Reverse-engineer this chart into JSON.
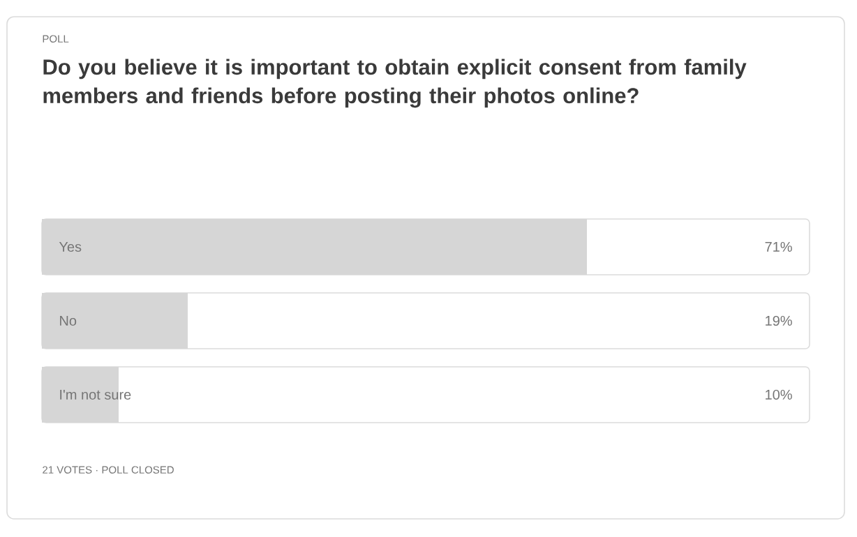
{
  "chart_data": {
    "type": "bar",
    "orientation": "horizontal",
    "title": "Do you believe it is important to obtain explicit consent from family members and friends before posting their photos online?",
    "categories": [
      "Yes",
      "No",
      "I'm not sure"
    ],
    "values": [
      71,
      19,
      10
    ],
    "value_labels": [
      "71%",
      "19%",
      "10%"
    ],
    "color": "#d6d6d6",
    "xlim": [
      0,
      100
    ],
    "annotations": [
      "POLL",
      "21 VOTES · POLL CLOSED"
    ]
  }
}
